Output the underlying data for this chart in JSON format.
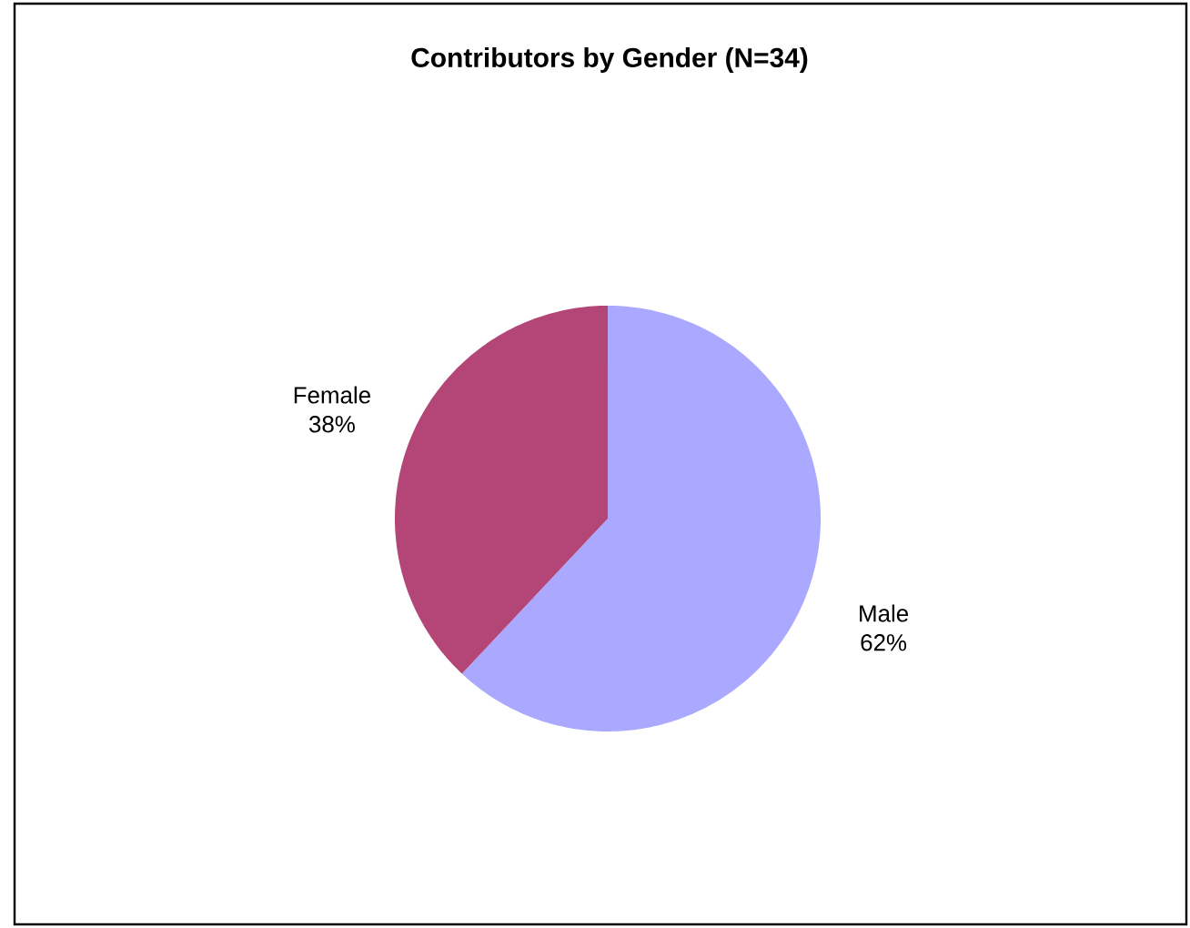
{
  "chart_data": {
    "type": "pie",
    "title": "Contributors by Gender (N=34)",
    "categories": [
      "Male",
      "Female"
    ],
    "values": [
      62,
      38
    ],
    "value_labels": [
      "62%",
      "38%"
    ],
    "colors": [
      "#aaa8ff",
      "#b44677"
    ],
    "legend": false
  }
}
